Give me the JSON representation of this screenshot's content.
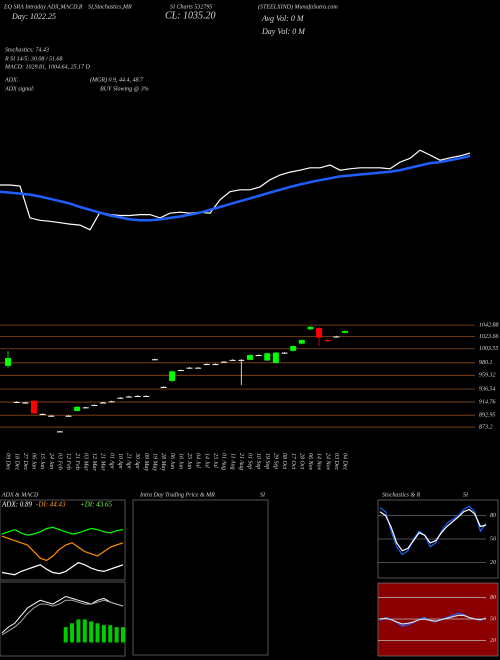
{
  "header": {
    "t1": "EQ SRA Intraday ADX,MACD,R",
    "t2": "SI,Stochastics,MR",
    "t3": "SI Charts 532795",
    "t4": "(STEELXIND) MunafaSutra.com",
    "day": "Day: 1022.25",
    "close": "CL: 1035.20",
    "avg_vol": "Avg Vol: 0  M",
    "day_vol": "Day Vol: 0  M",
    "stochastics": "Stochastics: 74.43",
    "rsi": "R      SI 14/5: 30.08 / 51.68",
    "macd": "MACD: 1029.81, 1004.64, 25.17 D",
    "adx": "ADX:",
    "adx_values": "(MGR) 0.9, 44.4, 48.7",
    "adx_signal": "ADX  signal:",
    "adx_signal_value": "BUY Slowing @ 3%"
  },
  "chart_data": [
    {
      "type": "line",
      "ylim": [
        660,
        1310
      ],
      "series": [
        {
          "color": "#ffffff",
          "values": [
            964,
            964,
            962,
            895,
            890,
            888,
            885,
            882,
            880,
            870,
            907,
            902,
            900,
            900,
            902,
            902,
            895,
            905,
            907,
            905,
            907,
            905,
            933,
            950,
            954,
            954,
            960,
            975,
            985,
            991,
            995,
            1000,
            1000,
            1006,
            995,
            998,
            1000,
            1000,
            1000,
            998,
            1012,
            1020,
            1037,
            1027,
            1016,
            1021,
            1025,
            1031
          ]
        },
        {
          "color": "#1f5fff",
          "values": [
            950,
            948,
            946,
            944,
            940,
            935,
            930,
            925,
            918,
            912,
            906,
            900,
            896,
            892,
            890,
            890,
            892,
            895,
            898,
            902,
            906,
            912,
            918,
            924,
            930,
            936,
            942,
            948,
            954,
            960,
            965,
            970,
            974,
            978,
            982,
            984,
            986,
            988,
            990,
            992,
            995,
            1000,
            1005,
            1010,
            1012,
            1016,
            1020,
            1025
          ]
        }
      ]
    },
    {
      "type": "candlestick",
      "categories": [
        "09 Dec",
        "18 Dec",
        "27 Dec",
        "06 Jan",
        "15 Jan",
        "24 Jan",
        "03 Feb",
        "12 Feb",
        "21 Feb",
        "03 Mar",
        "12 Mar",
        "21 Mar",
        "01 Apr",
        "10 Apr",
        "21 Apr",
        "30 Apr",
        "09 May",
        "19 May",
        "28 May",
        "06 Jun",
        "16 Jun",
        "25 Jun",
        "04 Jul",
        "14 Jul",
        "23 Jul",
        "01 Aug",
        "11 Aug",
        "21 Aug",
        "01 Sep",
        "10 Sep",
        "19 Sep",
        "29 Sep",
        "08 Oct",
        "17 Oct",
        "28 Oct",
        "06 Nov",
        "14 Nov",
        "24 Nov",
        "03 Dec",
        "04 Dec"
      ],
      "open": [
        975,
        915,
        914,
        917,
        895,
        892,
        866,
        892,
        900,
        906,
        910,
        914,
        916,
        922,
        924,
        925,
        925,
        986,
        940,
        950,
        968,
        972,
        972,
        978,
        978,
        982,
        985,
        985,
        985,
        993,
        984,
        980,
        997,
        1000,
        1012,
        1036,
        1038,
        1018,
        1024,
        1030
      ],
      "close": [
        988,
        915,
        914,
        896,
        895,
        892,
        866,
        892,
        907,
        906,
        910,
        914,
        916,
        922,
        924,
        925,
        925,
        986,
        940,
        966,
        968,
        972,
        972,
        978,
        978,
        982,
        985,
        985,
        993,
        993,
        996,
        997,
        997,
        1008,
        1018,
        1040,
        1022,
        1016,
        1024,
        1033
      ],
      "high": [
        1000,
        916,
        915,
        918,
        896,
        893,
        867,
        893,
        908,
        907,
        911,
        915,
        917,
        923,
        925,
        926,
        926,
        987,
        941,
        967,
        969,
        973,
        973,
        979,
        979,
        983,
        986,
        986,
        994,
        994,
        997,
        998,
        998,
        1009,
        1019,
        1041,
        1039,
        1019,
        1025,
        1034
      ],
      "low": [
        972,
        914,
        913,
        895,
        894,
        891,
        865,
        891,
        899,
        905,
        909,
        913,
        915,
        921,
        923,
        924,
        924,
        985,
        939,
        949,
        967,
        971,
        971,
        977,
        977,
        981,
        984,
        943,
        984,
        992,
        983,
        979,
        996,
        999,
        1011,
        1035,
        1008,
        1015,
        1023,
        1029
      ],
      "ylim": [
        835,
        1068
      ],
      "yticks": [
        {
          "value": 1042.88,
          "label": "1042.88"
        },
        1023.66,
        1003.55,
        980.1,
        959.32,
        936.54,
        914.76,
        892.95,
        873.2
      ],
      "grid": true,
      "grid_color": "#8b4a1c",
      "up_color": "#00ff00",
      "down_color": "#ff0000",
      "flat_color": "#ffffff"
    },
    {
      "type": "line",
      "title": "ADX & MACD",
      "annotations": [
        {
          "text": "ADX: 0.89",
          "color": "#ffffff"
        },
        {
          "text": "-DI: 44.43",
          "color": "#ff9a2a"
        },
        {
          "text": "+DI: 43.65",
          "color": "#7cff5a"
        }
      ],
      "ylim": [
        0,
        60
      ],
      "series": [
        {
          "color": "#00ff00",
          "values": [
            40,
            42,
            44,
            41,
            39,
            40,
            42,
            45,
            46,
            44,
            42,
            40,
            41,
            43,
            45,
            44,
            42,
            41,
            43,
            44
          ]
        },
        {
          "color": "#ff8c00",
          "values": [
            38,
            36,
            34,
            32,
            30,
            24,
            18,
            16,
            20,
            26,
            30,
            32,
            28,
            24,
            22,
            20,
            24,
            28,
            30,
            32
          ]
        },
        {
          "color": "#ffffff",
          "values": [
            5,
            4,
            3,
            6,
            8,
            10,
            12,
            8,
            5,
            4,
            6,
            10,
            14,
            12,
            9,
            7,
            6,
            8,
            10,
            12
          ]
        }
      ]
    },
    {
      "type": "combo",
      "ylim": [
        -5,
        30
      ],
      "series": [
        {
          "style": "bar",
          "color": "#00cc00",
          "values": [
            0,
            0,
            0,
            0,
            0,
            0,
            0,
            0,
            0,
            0,
            8,
            10,
            12,
            12,
            11,
            10,
            9,
            9,
            8,
            8
          ]
        },
        {
          "style": "line",
          "color": "#ffffff",
          "values": [
            5,
            8,
            10,
            14,
            18,
            20,
            22,
            21,
            20,
            22,
            24,
            23,
            22,
            21,
            20,
            22,
            23,
            21,
            20,
            19
          ]
        },
        {
          "style": "line",
          "color": "#aaaaaa",
          "values": [
            4,
            6,
            8,
            11,
            15,
            18,
            20,
            20,
            19,
            20,
            22,
            22,
            21,
            20,
            20,
            21,
            22,
            21,
            20,
            19
          ]
        }
      ]
    },
    {
      "type": "line",
      "title": "Intra  Day Trading Price & MR",
      "subtitle": "SI"
    },
    {
      "type": "line",
      "title": "Stochastics & R",
      "subtitle": "SI",
      "ylim": [
        0,
        100
      ],
      "yticks": [
        80,
        50,
        20
      ],
      "grid": true,
      "grid_color": "#666666",
      "series": [
        {
          "color": "#1f5fff",
          "values": [
            90,
            85,
            60,
            40,
            30,
            35,
            50,
            60,
            55,
            40,
            45,
            60,
            70,
            75,
            80,
            88,
            92,
            85,
            60,
            70
          ]
        },
        {
          "color": "#ffffff",
          "values": [
            85,
            80,
            65,
            45,
            35,
            38,
            48,
            58,
            55,
            45,
            48,
            58,
            66,
            72,
            78,
            85,
            88,
            82,
            66,
            68
          ]
        }
      ]
    },
    {
      "type": "line",
      "background": "#8b0000",
      "ylim": [
        0,
        100
      ],
      "yticks": [
        80,
        50,
        20
      ],
      "grid": true,
      "grid_color": "#bbbbbb",
      "series": [
        {
          "color": "#1f5fff",
          "values": [
            48,
            52,
            50,
            45,
            40,
            42,
            45,
            50,
            52,
            48,
            46,
            50,
            52,
            55,
            58,
            56,
            52,
            50,
            48,
            52
          ]
        },
        {
          "color": "#dddddd",
          "values": [
            50,
            51,
            49,
            46,
            43,
            44,
            46,
            49,
            50,
            48,
            47,
            49,
            51,
            53,
            55,
            55,
            52,
            50,
            49,
            51
          ]
        }
      ]
    }
  ]
}
